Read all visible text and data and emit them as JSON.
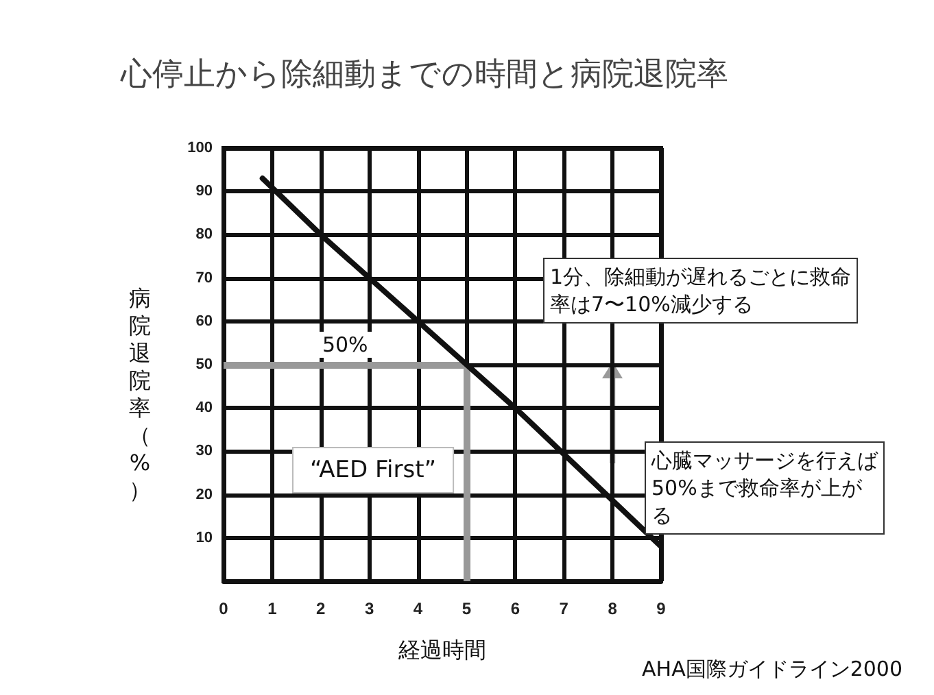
{
  "chart_data": {
    "type": "line",
    "title": "心停止から除細動までの時間と病院退院率",
    "xlabel": "経過時間",
    "ylabel": "病院退院率（%）",
    "x": [
      0.8,
      2,
      4,
      6,
      9
    ],
    "series": [
      {
        "color": "#111111",
        "values": [
          93,
          80,
          60,
          40,
          8
        ]
      }
    ],
    "xlim": [
      0,
      9
    ],
    "xticks": [
      0,
      1,
      2,
      3,
      4,
      5,
      6,
      7,
      8,
      9
    ],
    "ylim": [
      0,
      100
    ],
    "yticks": [
      10,
      20,
      30,
      40,
      50,
      60,
      70,
      80,
      90,
      100
    ],
    "grid": true,
    "marker": "none",
    "line_style": "solid",
    "ref_lines": [
      {
        "axis": "x",
        "value": 5,
        "color": "#999999"
      },
      {
        "axis": "y",
        "value": 50,
        "label": "50%",
        "color": "#999999"
      }
    ],
    "annotations": [
      "1分、除細動が遅れるごとに救命率は7〜10%減少する",
      "“AED First”",
      "心臓マッサージを行えば50%まで救命率が上がる",
      "AHA国際ガイドライン2000"
    ]
  }
}
